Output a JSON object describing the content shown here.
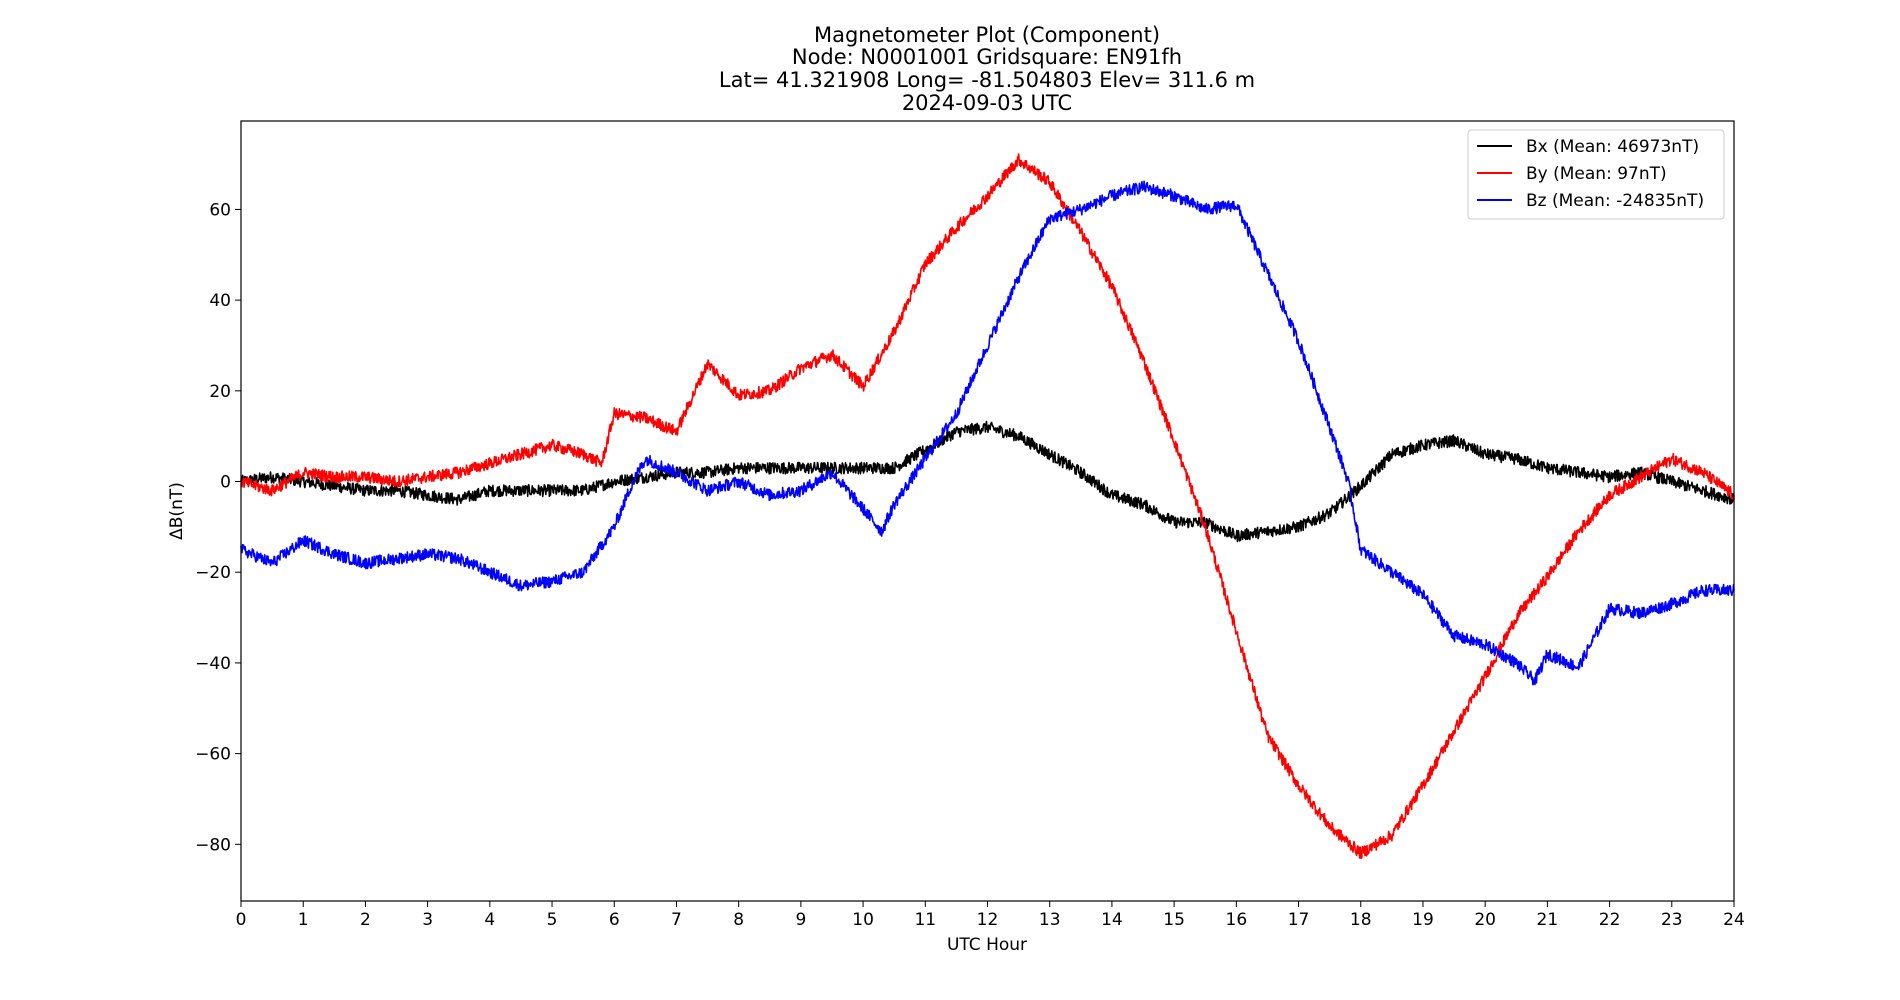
{
  "chart_data": {
    "type": "line",
    "title_lines": [
      "Magnetometer Plot (Component)",
      "Node:  N0001001     Gridsquare:  EN91fh",
      "Lat= 41.321908    Long= -81.504803    Elev= 311.6 m",
      "2024-09-03  UTC"
    ],
    "xlabel": "UTC Hour",
    "ylabel": "ΔB(nT)",
    "xlim": [
      0,
      24
    ],
    "ylim": [
      -92.5,
      79.5
    ],
    "xticks": [
      0,
      1,
      2,
      3,
      4,
      5,
      6,
      7,
      8,
      9,
      10,
      11,
      12,
      13,
      14,
      15,
      16,
      17,
      18,
      19,
      20,
      21,
      22,
      23,
      24
    ],
    "yticks": [
      60,
      40,
      20,
      0,
      -20,
      -40,
      -60,
      -80
    ],
    "ytick_labels": [
      "60",
      "40",
      "20",
      "0",
      "−20",
      "−40",
      "−60",
      "−80"
    ],
    "grid": false,
    "legend_position": "upper right",
    "series": [
      {
        "name": "Bx (Mean: 46973nT)",
        "color": "#000000",
        "x": [
          0,
          0.5,
          1,
          1.5,
          2,
          2.5,
          3,
          3.5,
          4,
          4.5,
          5,
          5.5,
          6,
          6.5,
          7,
          7.5,
          8,
          8.5,
          9,
          9.5,
          10,
          10.5,
          11,
          11.5,
          12,
          12.5,
          13,
          13.5,
          14,
          14.5,
          15,
          15.5,
          16,
          16.5,
          17,
          17.5,
          18,
          18.5,
          19,
          19.5,
          20,
          20.5,
          21,
          21.5,
          22,
          22.5,
          23,
          23.5,
          24
        ],
        "y": [
          0,
          1,
          0,
          -1,
          -2,
          -2,
          -3,
          -4,
          -2,
          -2,
          -2,
          -2,
          0,
          1,
          2,
          2,
          3,
          3,
          3,
          3,
          3,
          3,
          7,
          11,
          12,
          10,
          6,
          2,
          -3,
          -5,
          -9,
          -9,
          -12,
          -11,
          -10,
          -7,
          -1,
          6,
          8,
          9,
          6,
          5,
          3,
          2,
          1,
          2,
          0,
          -2,
          -4
        ]
      },
      {
        "name": "By (Mean: 97nT)",
        "color": "#ff0000",
        "x": [
          0,
          0.5,
          1,
          1.5,
          2,
          2.5,
          3,
          3.5,
          4,
          4.5,
          5,
          5.5,
          5.8,
          6,
          6.5,
          7,
          7.5,
          8,
          8.5,
          9,
          9.5,
          10,
          10.5,
          11,
          11.5,
          12,
          12.5,
          13,
          13.5,
          14,
          14.5,
          15,
          15.5,
          16,
          16.5,
          17,
          17.5,
          18,
          18.5,
          19,
          19.5,
          20,
          20.5,
          21,
          21.5,
          22,
          22.5,
          23,
          23.5,
          24
        ],
        "y": [
          0,
          -2,
          2,
          1,
          1,
          0,
          1,
          2,
          4,
          6,
          8,
          6,
          4,
          15,
          14,
          11,
          26,
          19,
          20,
          25,
          28,
          21,
          33,
          48,
          56,
          63,
          71,
          66,
          55,
          43,
          27,
          9,
          -10,
          -33,
          -56,
          -67,
          -76,
          -82,
          -78,
          -67,
          -55,
          -43,
          -30,
          -21,
          -11,
          -3,
          1,
          5,
          2,
          -3
        ]
      },
      {
        "name": "Bz (Mean: -24835nT)",
        "color": "#0000ff",
        "x": [
          0,
          0.5,
          1,
          1.5,
          2,
          2.5,
          3,
          3.5,
          4,
          4.5,
          5,
          5.5,
          6,
          6.3,
          6.5,
          7,
          7.5,
          8,
          8.5,
          9,
          9.5,
          10,
          10.3,
          10.5,
          11,
          11.5,
          12,
          12.5,
          13,
          13.5,
          14,
          14.5,
          15,
          15.5,
          16,
          16.5,
          17,
          17.5,
          17.8,
          18,
          18.5,
          19,
          19.5,
          20,
          20.5,
          20.8,
          21,
          21.5,
          22,
          22.5,
          23,
          23.5,
          24
        ],
        "y": [
          -15,
          -18,
          -13,
          -16,
          -18,
          -17,
          -16,
          -17,
          -20,
          -23,
          -22,
          -20,
          -10,
          0,
          5,
          2,
          -2,
          0,
          -3,
          -2,
          2,
          -6,
          -11,
          -5,
          5,
          15,
          30,
          45,
          58,
          60,
          63,
          65,
          63,
          60,
          61,
          46,
          31,
          12,
          0,
          -15,
          -20,
          -25,
          -34,
          -36,
          -40,
          -44,
          -38,
          -41,
          -28,
          -29,
          -27,
          -24,
          -24
        ]
      }
    ]
  }
}
